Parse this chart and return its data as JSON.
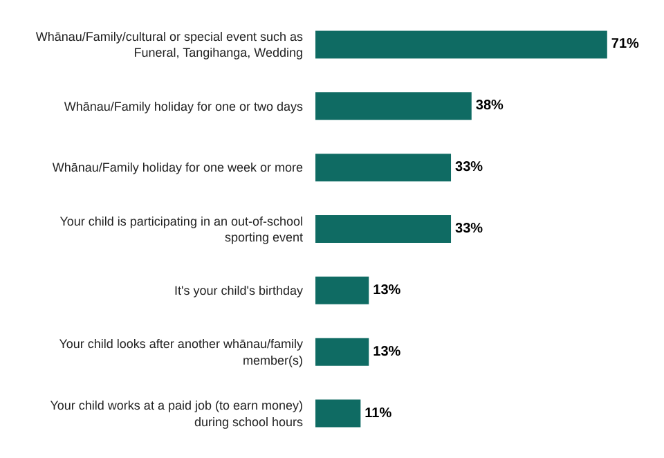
{
  "chart_data": {
    "type": "bar",
    "orientation": "horizontal",
    "categories": [
      "Whānau/Family/cultural or special event such as Funeral, Tangihanga, Wedding",
      "Whānau/Family holiday for one or two days",
      "Whānau/Family holiday for one week or more",
      "Your child is participating in an out-of-school sporting event",
      "It's your child's birthday",
      "Your child looks after another whānau/family member(s)",
      "Your child works at a paid job (to earn money) during school hours"
    ],
    "values": [
      71,
      38,
      33,
      33,
      13,
      13,
      11
    ],
    "value_labels": [
      "71%",
      "38%",
      "33%",
      "33%",
      "13%",
      "13%",
      "11%"
    ],
    "color": "#0f6b63"
  }
}
